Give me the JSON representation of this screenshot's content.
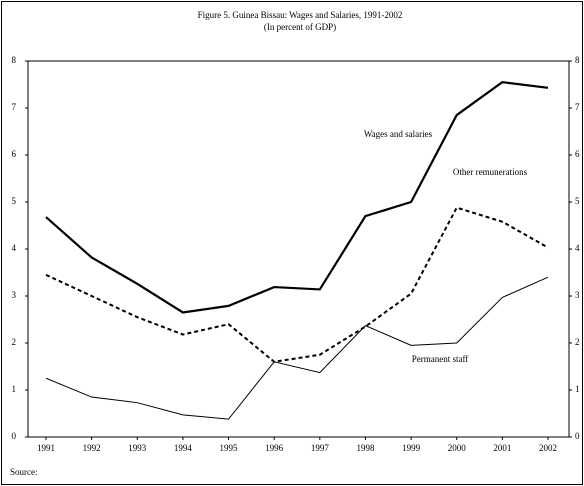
{
  "chart_data": {
    "type": "line",
    "title": "Figure 5. Guinea Bissau: Wages and Salaries, 1991-2002",
    "subtitle": "(In percent of GDP)",
    "source": "Source:",
    "categories": [
      "1991",
      "1992",
      "1993",
      "1994",
      "1995",
      "1996",
      "1997",
      "1998",
      "1999",
      "2000",
      "2001",
      "2002"
    ],
    "series": [
      {
        "name": "Wages and salaries",
        "color": "#000000",
        "style": "solid-thick",
        "values": [
          4.68,
          3.82,
          3.26,
          2.65,
          2.79,
          3.19,
          3.14,
          4.7,
          5.0,
          6.85,
          7.55,
          7.43
        ]
      },
      {
        "name": "Other remunerations",
        "color": "#000000",
        "style": "dashed",
        "values": [
          3.45,
          3.0,
          2.55,
          2.18,
          2.4,
          1.6,
          1.75,
          2.35,
          3.05,
          4.88,
          4.58,
          4.03
        ]
      },
      {
        "name": "Permanent staff",
        "color": "#000000",
        "style": "solid-thin",
        "values": [
          1.25,
          0.85,
          0.73,
          0.47,
          0.38,
          1.6,
          1.37,
          2.37,
          1.95,
          2.0,
          2.97,
          3.4
        ]
      }
    ],
    "ylim": [
      0,
      8
    ],
    "yticks": [
      0,
      1,
      2,
      3,
      4,
      5,
      6,
      7,
      8
    ],
    "grid": false
  }
}
